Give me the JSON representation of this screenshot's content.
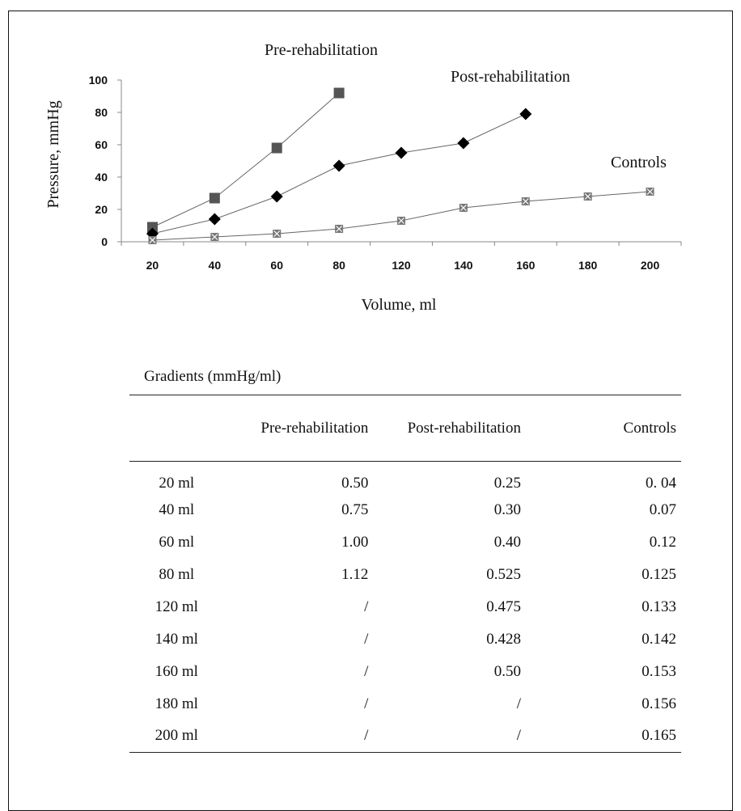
{
  "chart_data": {
    "type": "line",
    "categories": [
      "20",
      "40",
      "60",
      "80",
      "120",
      "140",
      "160",
      "180",
      "200"
    ],
    "series": [
      {
        "name": "Pre-rehabilitation",
        "marker": "square",
        "color": "#555555",
        "values": [
          9,
          27,
          58,
          92,
          null,
          null,
          null,
          null,
          null
        ]
      },
      {
        "name": "Post-rehabilitation",
        "marker": "diamond",
        "color": "#000000",
        "values": [
          5,
          14,
          28,
          47,
          55,
          61,
          79,
          null,
          null
        ]
      },
      {
        "name": "Controls",
        "marker": "x-square",
        "color": "#777777",
        "values": [
          1,
          3,
          5,
          8,
          13,
          21,
          25,
          28,
          31
        ]
      }
    ],
    "xlabel": "Volume, ml",
    "ylabel": "Pressure, mmHg",
    "ylim": [
      0,
      100
    ],
    "yticks": [
      "0",
      "20",
      "40",
      "60",
      "80",
      "100"
    ],
    "grid": false,
    "legend": "inline labels"
  },
  "table": {
    "caption": "Gradients  (mmHg/ml)",
    "headers": [
      "",
      "Pre-rehabilitation",
      "Post-rehabilitation",
      "Controls"
    ],
    "rows": [
      [
        "20 ml",
        "0.50",
        "0.25",
        "0. 04"
      ],
      [
        "40 ml",
        "0.75",
        "0.30",
        "0.07"
      ],
      [
        "60 ml",
        "1.00",
        "0.40",
        "0.12"
      ],
      [
        "80 ml",
        "1.12",
        "0.525",
        "0.125"
      ],
      [
        "120 ml",
        "/",
        "0.475",
        "0.133"
      ],
      [
        "140 ml",
        "/",
        "0.428",
        "0.142"
      ],
      [
        "160 ml",
        "/",
        "0.50",
        "0.153"
      ],
      [
        "180 ml",
        "/",
        "/",
        "0.156"
      ],
      [
        "200 ml",
        "/",
        "/",
        "0.165"
      ]
    ]
  }
}
